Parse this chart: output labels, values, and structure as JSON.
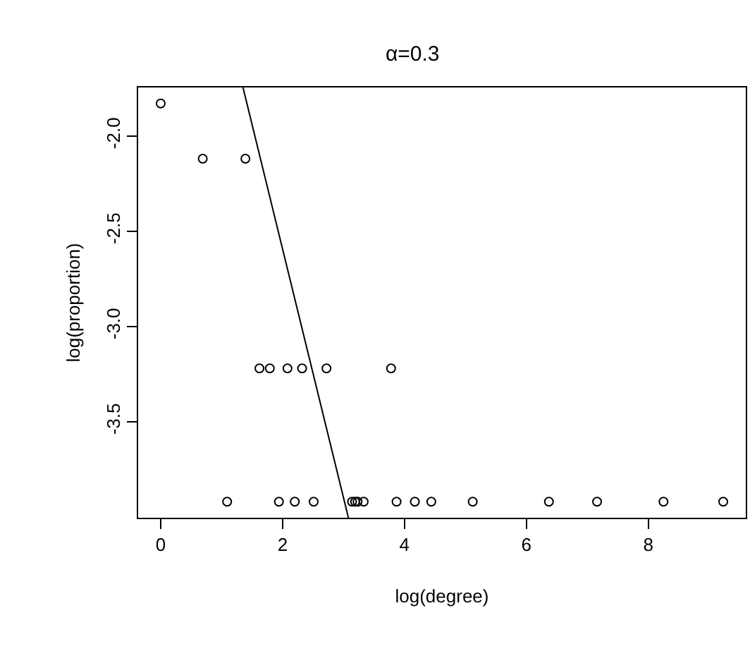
{
  "chart_data": {
    "type": "scatter",
    "title": "α=0.3",
    "xlabel": "log(degree)",
    "ylabel": "log(proportion)",
    "xlim": [
      -0.37,
      9.6
    ],
    "ylim": [
      -4.004,
      -1.746
    ],
    "xticks": [
      0,
      2,
      4,
      6,
      8
    ],
    "yticks": [
      {
        "value": -2.0,
        "label": "-2.0"
      },
      {
        "value": -2.5,
        "label": "-2.5"
      },
      {
        "value": -3.0,
        "label": "-3.0"
      },
      {
        "value": -3.5,
        "label": "-3.5"
      }
    ],
    "marker": "circle",
    "series": [
      {
        "color": "#000000",
        "x": [
          0,
          0.69,
          1.39,
          1.62,
          1.79,
          2.08,
          2.32,
          2.72,
          3.78,
          1.09,
          1.94,
          2.2,
          2.51,
          3.14,
          3.19,
          3.23,
          3.33,
          3.87,
          4.17,
          4.44,
          5.12,
          6.37,
          7.16,
          8.25,
          9.23
        ],
        "values": [
          -1.83,
          -2.12,
          -2.12,
          -3.22,
          -3.22,
          -3.22,
          -3.22,
          -3.22,
          -3.22,
          -3.92,
          -3.92,
          -3.92,
          -3.92,
          -3.92,
          -3.92,
          -3.92,
          -3.92,
          -3.92,
          -3.92,
          -3.92,
          -3.92,
          -3.92,
          -3.92,
          -3.92,
          -3.92
        ]
      },
      {
        "type": "line",
        "color": "#000000",
        "marker": "none",
        "x": [
          1.35,
          3.08
        ],
        "values": [
          -1.746,
          -4.004
        ]
      }
    ]
  }
}
